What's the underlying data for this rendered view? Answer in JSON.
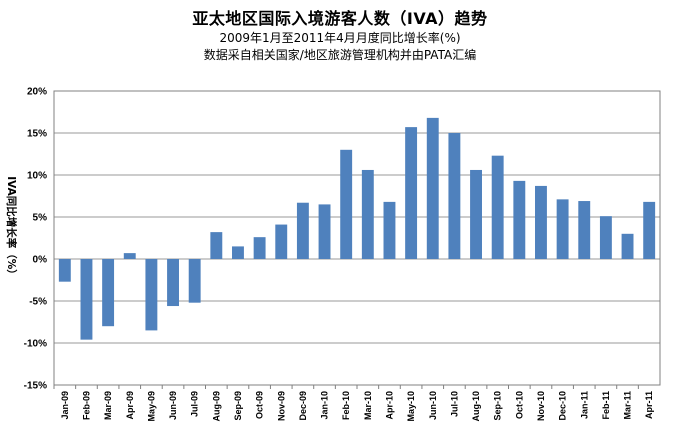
{
  "title": "亚太地区国际入境游客人数（IVA）趋势",
  "subtitle_1": "2009年1月至2011年4月月度同比增长率(%)",
  "subtitle_2": "数据采自相关国家/地区旅游管理机构并由PATA汇编",
  "chart_data": {
    "type": "bar",
    "title": "亚太地区国际入境游客人数（IVA）趋势",
    "ylabel": "IVA同比增长率（%）",
    "xlabel": "",
    "ylim": [
      -15,
      20
    ],
    "ytick_values": [
      -15,
      -10,
      -5,
      0,
      5,
      10,
      15,
      20
    ],
    "ytick_labels": [
      "-15%",
      "-10%",
      "-5%",
      "0%",
      "5%",
      "10%",
      "15%",
      "20%"
    ],
    "grid": true,
    "bar_color": "#4f81bd",
    "categories": [
      "Jan-09",
      "Feb-09",
      "Mar-09",
      "Apr-09",
      "May-09",
      "Jun-09",
      "Jul-09",
      "Aug-09",
      "Sep-09",
      "Oct-09",
      "Nov-09",
      "Dec-09",
      "Jan-10",
      "Feb-10",
      "Mar-10",
      "Apr-10",
      "May-10",
      "Jun-10",
      "Jul-10",
      "Aug-10",
      "Sep-10",
      "Oct-10",
      "Nov-10",
      "Dec-10",
      "Jan-11",
      "Feb-11",
      "Mar-11",
      "Apr-11"
    ],
    "values": [
      -2.7,
      -9.6,
      -8.0,
      0.7,
      -8.5,
      -5.6,
      -5.2,
      3.2,
      1.5,
      2.6,
      4.1,
      6.7,
      6.5,
      13.0,
      10.6,
      6.8,
      15.7,
      16.8,
      15.0,
      10.6,
      12.3,
      9.3,
      8.7,
      7.1,
      6.9,
      5.1,
      3.0,
      6.8
    ]
  }
}
